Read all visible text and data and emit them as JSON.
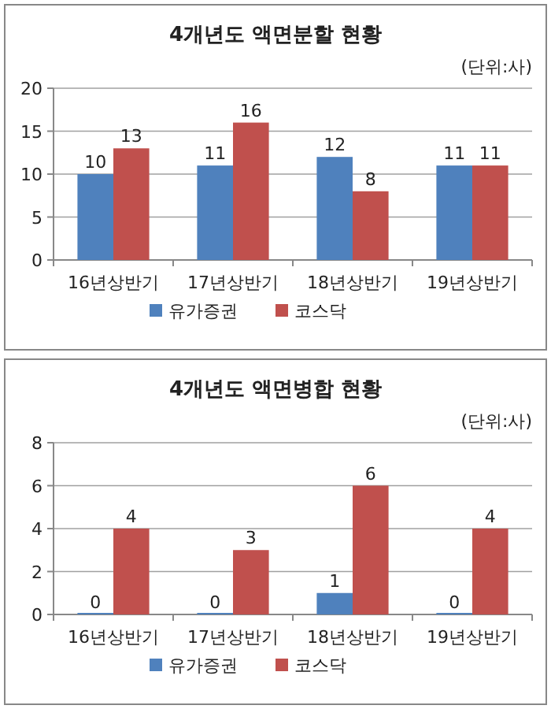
{
  "chart_data": [
    {
      "type": "bar",
      "title": "4개년도 액면분할 현황",
      "annotations": [
        "(단위:사)"
      ],
      "categories": [
        "16년상반기",
        "17년상반기",
        "18년상반기",
        "19년상반기"
      ],
      "series": [
        {
          "name": "유가증권",
          "color": "#4f81bd",
          "values": [
            10,
            11,
            12,
            11
          ]
        },
        {
          "name": "코스닥",
          "color": "#c0504d",
          "values": [
            13,
            16,
            8,
            11
          ]
        }
      ],
      "ylim": [
        0,
        20
      ],
      "yticks": [
        0,
        5,
        10,
        15,
        20
      ],
      "grid": "y",
      "legend": "bottom",
      "data_labels": true
    },
    {
      "type": "bar",
      "title": "4개년도 액면병합 현황",
      "annotations": [
        "(단위:사)"
      ],
      "categories": [
        "16년상반기",
        "17년상반기",
        "18년상반기",
        "19년상반기"
      ],
      "series": [
        {
          "name": "유가증권",
          "color": "#4f81bd",
          "values": [
            0,
            0,
            1,
            0
          ]
        },
        {
          "name": "코스닥",
          "color": "#c0504d",
          "values": [
            4,
            3,
            6,
            4
          ]
        }
      ],
      "ylim": [
        0,
        8
      ],
      "yticks": [
        0,
        2,
        4,
        6,
        8
      ],
      "grid": "y",
      "legend": "bottom",
      "data_labels": true
    }
  ]
}
